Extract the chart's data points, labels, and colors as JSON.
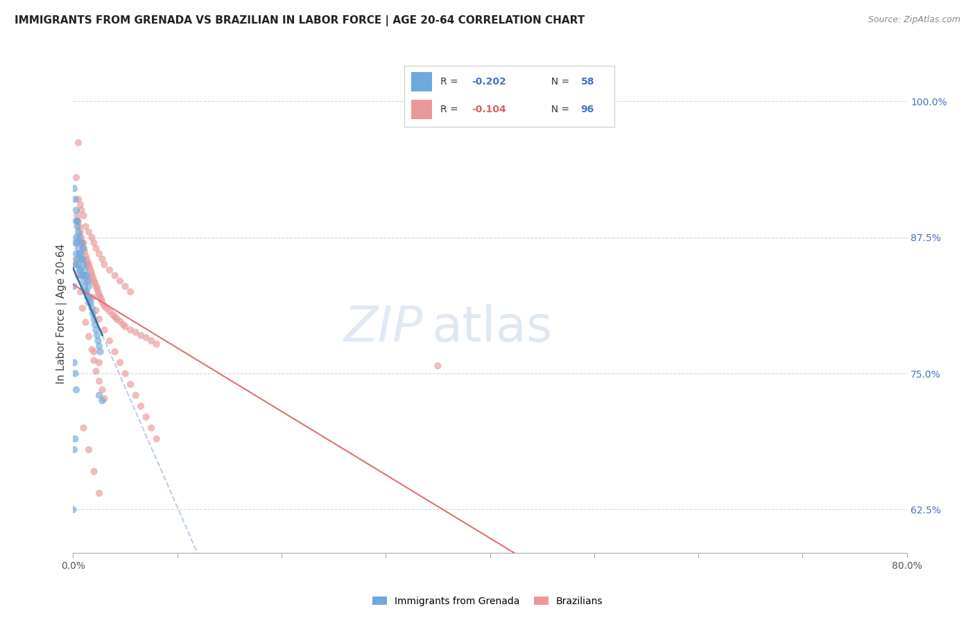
{
  "title": "IMMIGRANTS FROM GRENADA VS BRAZILIAN IN LABOR FORCE | AGE 20-64 CORRELATION CHART",
  "source": "Source: ZipAtlas.com",
  "ylabel": "In Labor Force | Age 20-64",
  "legend_label1": "Immigrants from Grenada",
  "legend_label2": "Brazilians",
  "r1": "-0.202",
  "n1": "58",
  "r2": "-0.104",
  "n2": "96",
  "xlim": [
    0.0,
    0.8
  ],
  "ylim": [
    0.585,
    1.025
  ],
  "yticks_right": [
    0.625,
    0.75,
    0.875,
    1.0
  ],
  "ytick_right_labels": [
    "62.5%",
    "75.0%",
    "87.5%",
    "100.0%"
  ],
  "color_blue": "#6fa8dc",
  "color_pink": "#ea9999",
  "color_blue_line": "#3d6fa3",
  "color_pink_line": "#e07070",
  "color_blue_dashed": "#b0c8e8",
  "scatter_alpha": 0.65,
  "scatter_size": 55,
  "blue_x": [
    0.001,
    0.002,
    0.002,
    0.003,
    0.003,
    0.003,
    0.004,
    0.004,
    0.004,
    0.005,
    0.005,
    0.005,
    0.006,
    0.006,
    0.006,
    0.007,
    0.007,
    0.008,
    0.008,
    0.008,
    0.009,
    0.009,
    0.01,
    0.01,
    0.01,
    0.011,
    0.011,
    0.012,
    0.012,
    0.013,
    0.013,
    0.014,
    0.014,
    0.015,
    0.015,
    0.016,
    0.017,
    0.018,
    0.019,
    0.02,
    0.021,
    0.022,
    0.023,
    0.024,
    0.025,
    0.026,
    0.001,
    0.002,
    0.003,
    0.004,
    0.001,
    0.002,
    0.001,
    0.002,
    0.003,
    0.025,
    0.028,
    0.0
  ],
  "blue_y": [
    0.83,
    0.87,
    0.85,
    0.89,
    0.875,
    0.86,
    0.885,
    0.87,
    0.855,
    0.88,
    0.865,
    0.85,
    0.875,
    0.86,
    0.845,
    0.86,
    0.845,
    0.87,
    0.855,
    0.84,
    0.855,
    0.84,
    0.865,
    0.85,
    0.835,
    0.845,
    0.83,
    0.84,
    0.825,
    0.84,
    0.825,
    0.835,
    0.82,
    0.83,
    0.815,
    0.82,
    0.815,
    0.81,
    0.805,
    0.8,
    0.795,
    0.79,
    0.785,
    0.78,
    0.775,
    0.77,
    0.92,
    0.91,
    0.9,
    0.89,
    0.68,
    0.69,
    0.76,
    0.75,
    0.735,
    0.73,
    0.725,
    0.625
  ],
  "pink_x": [
    0.003,
    0.004,
    0.005,
    0.006,
    0.007,
    0.008,
    0.009,
    0.01,
    0.011,
    0.012,
    0.013,
    0.014,
    0.015,
    0.016,
    0.017,
    0.018,
    0.019,
    0.02,
    0.021,
    0.022,
    0.023,
    0.024,
    0.025,
    0.026,
    0.027,
    0.028,
    0.03,
    0.032,
    0.035,
    0.038,
    0.04,
    0.042,
    0.045,
    0.048,
    0.05,
    0.055,
    0.06,
    0.065,
    0.07,
    0.075,
    0.08,
    0.005,
    0.008,
    0.01,
    0.012,
    0.015,
    0.018,
    0.02,
    0.022,
    0.025,
    0.028,
    0.03,
    0.035,
    0.04,
    0.045,
    0.05,
    0.055,
    0.007,
    0.01,
    0.013,
    0.016,
    0.019,
    0.022,
    0.025,
    0.03,
    0.035,
    0.04,
    0.045,
    0.05,
    0.055,
    0.06,
    0.065,
    0.07,
    0.075,
    0.08,
    0.35,
    0.003,
    0.005,
    0.007,
    0.009,
    0.012,
    0.015,
    0.018,
    0.02,
    0.022,
    0.025,
    0.028,
    0.03,
    0.025,
    0.02,
    0.015,
    0.01,
    0.005,
    0.003,
    0.02,
    0.025
  ],
  "pink_y": [
    0.93,
    0.895,
    0.89,
    0.885,
    0.88,
    0.875,
    0.87,
    0.865,
    0.862,
    0.858,
    0.855,
    0.852,
    0.85,
    0.847,
    0.844,
    0.841,
    0.838,
    0.835,
    0.833,
    0.83,
    0.828,
    0.825,
    0.822,
    0.82,
    0.818,
    0.815,
    0.812,
    0.81,
    0.807,
    0.804,
    0.802,
    0.8,
    0.798,
    0.795,
    0.793,
    0.79,
    0.788,
    0.785,
    0.783,
    0.78,
    0.777,
    0.91,
    0.9,
    0.895,
    0.885,
    0.88,
    0.875,
    0.87,
    0.865,
    0.86,
    0.855,
    0.85,
    0.845,
    0.84,
    0.835,
    0.83,
    0.825,
    0.905,
    0.87,
    0.85,
    0.835,
    0.82,
    0.808,
    0.8,
    0.79,
    0.78,
    0.77,
    0.76,
    0.75,
    0.74,
    0.73,
    0.72,
    0.71,
    0.7,
    0.69,
    0.757,
    0.855,
    0.84,
    0.825,
    0.81,
    0.797,
    0.784,
    0.772,
    0.762,
    0.752,
    0.743,
    0.735,
    0.727,
    0.64,
    0.66,
    0.68,
    0.7,
    0.962,
    0.85,
    0.77,
    0.76
  ],
  "watermark_zip": "ZIP",
  "watermark_atlas": "atlas",
  "background_color": "#ffffff",
  "grid_color": "#cccccc"
}
